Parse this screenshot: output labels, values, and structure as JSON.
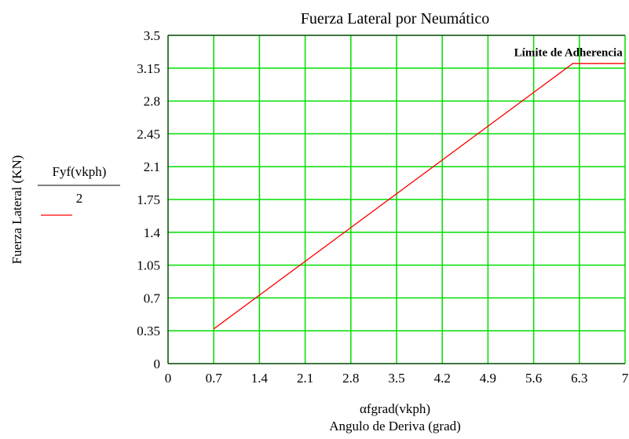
{
  "chart_data": {
    "type": "line",
    "title": "Fuerza Lateral por Neumático",
    "xlabel_expr": "αfgrad(vkph)",
    "xlabel": "Angulo de Deriva (grad)",
    "ylabel": "Fuerza Lateral (KN)",
    "xlim": [
      0,
      7
    ],
    "ylim": [
      0,
      3.5
    ],
    "x_ticks": [
      "0",
      "0.7",
      "1.4",
      "2.1",
      "2.8",
      "3.5",
      "4.2",
      "4.9",
      "5.6",
      "6.3",
      "7"
    ],
    "y_ticks": [
      "0",
      "0.35",
      "0.7",
      "1.05",
      "1.4",
      "1.75",
      "2.1",
      "2.45",
      "2.8",
      "3.15",
      "3.5"
    ],
    "x_tick_values": [
      0,
      0.7,
      1.4,
      2.1,
      2.8,
      3.5,
      4.2,
      4.9,
      5.6,
      6.3,
      7
    ],
    "y_tick_values": [
      0,
      0.35,
      0.7,
      1.05,
      1.4,
      1.75,
      2.1,
      2.45,
      2.8,
      3.15,
      3.5
    ],
    "grid": true,
    "grid_color": "#00dd00",
    "series": [
      {
        "legend_numerator": "Fyf(vkph)",
        "legend_denominator": "2",
        "color": "#ff0000",
        "x": [
          0.7,
          6.2,
          7.0
        ],
        "y": [
          0.37,
          3.2,
          3.2
        ]
      }
    ],
    "annotations": [
      {
        "text": "Límite de Adherencia",
        "x": 5.3,
        "y": 3.28
      }
    ]
  }
}
